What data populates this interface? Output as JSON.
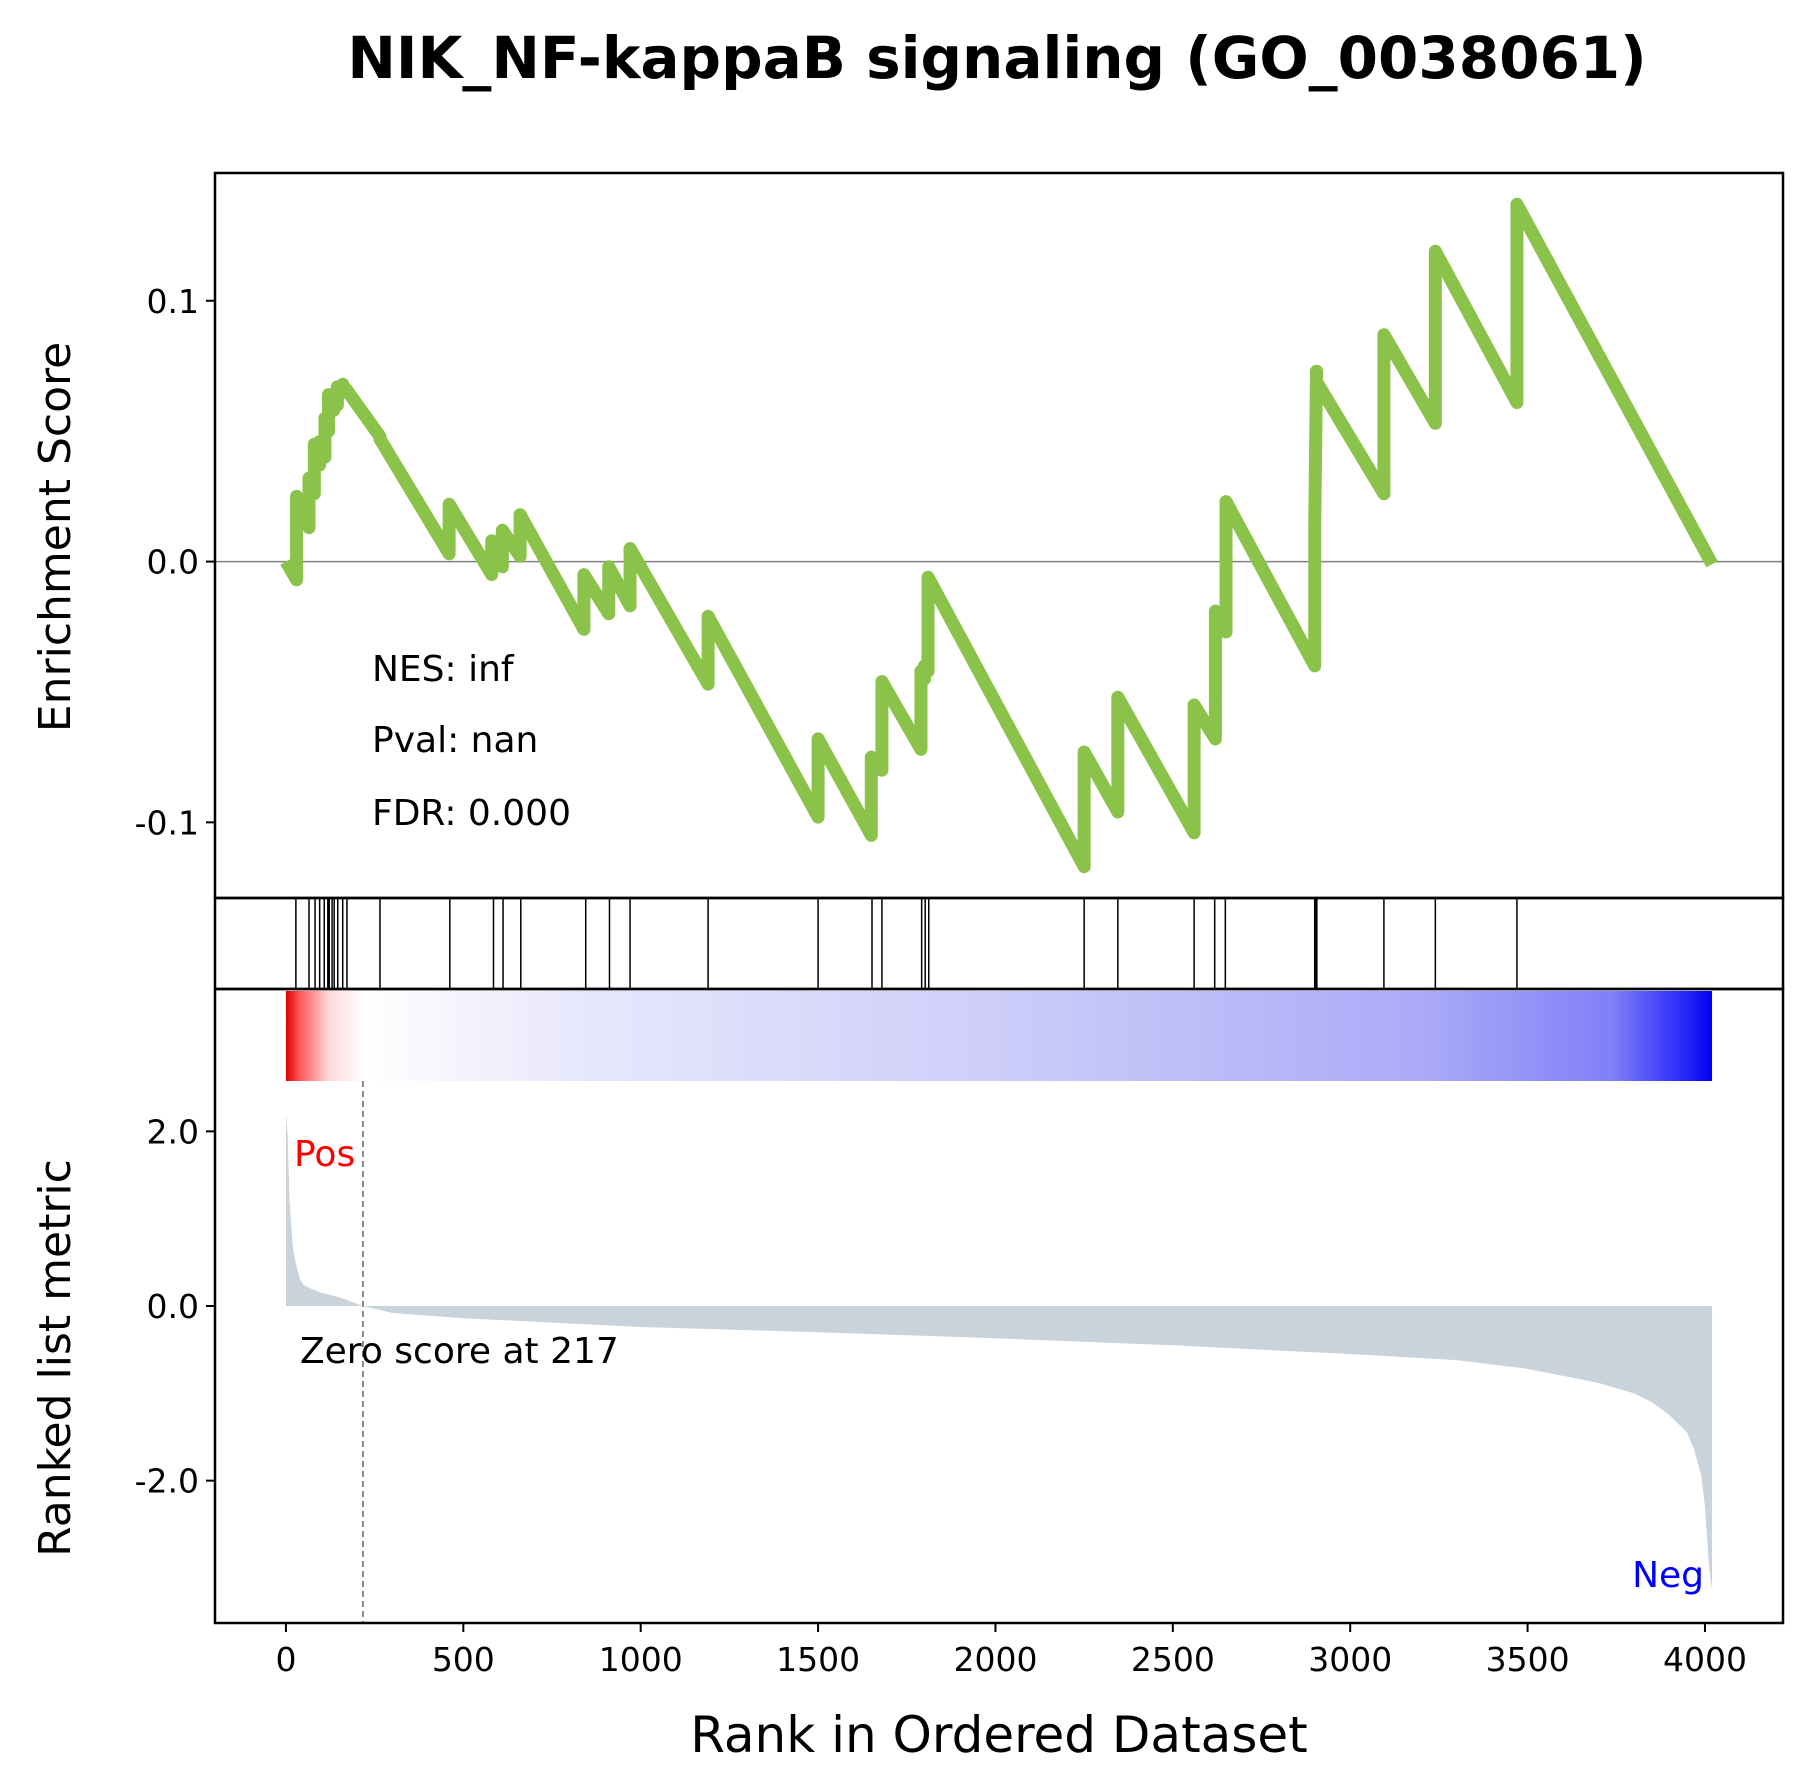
{
  "chart_data": {
    "type": "line",
    "title": "NIK_NF-kappaB signaling (GO_0038061)",
    "colors": {
      "es_line": "#8bc34a",
      "ranked_fill": "#c8d3dc",
      "pos_label": "#ff0000",
      "neg_label": "#0000ff",
      "hits": "#000000"
    },
    "xlabel": "Rank in Ordered Dataset",
    "xlim": [
      -200,
      4220
    ],
    "xticks": [
      0,
      500,
      1000,
      1500,
      2000,
      2500,
      3000,
      3500,
      4000
    ],
    "xtick_labels": [
      "0",
      "500",
      "1000",
      "1500",
      "2000",
      "2500",
      "3000",
      "3500",
      "4000"
    ],
    "es_panel": {
      "ylabel": "Enrichment Score",
      "ylim": [
        -0.129,
        0.149
      ],
      "yticks": [
        -0.1,
        0.0,
        0.1
      ],
      "ytick_labels": [
        "-0.1",
        "0.0",
        "0.1"
      ],
      "zero_line": true,
      "annotations": [
        "NES: inf",
        "Pval: nan",
        "FDR: 0.000"
      ],
      "series": [
        {
          "x": [
            0,
            30,
            30,
            65,
            65,
            80,
            80,
            95,
            95,
            110,
            110,
            120,
            120,
            135,
            135,
            145,
            145,
            160,
            160,
            170,
            170,
            265,
            265,
            460,
            460,
            580,
            580,
            610,
            610,
            660,
            660,
            840,
            840,
            910,
            910,
            970,
            970,
            1190,
            1190,
            1500,
            1500,
            1650,
            1650,
            1680,
            1680,
            1790,
            1790,
            1800,
            1800,
            1810,
            1810,
            2250,
            2250,
            2345,
            2345,
            2560,
            2560,
            2620,
            2620,
            2650,
            2650,
            2900,
            2900,
            2905,
            2905,
            3095,
            3095,
            3240,
            3240,
            3470,
            3470,
            4020
          ],
          "y": [
            0,
            -0.007,
            0.025,
            0.013,
            0.032,
            0.026,
            0.045,
            0.037,
            0.046,
            0.04,
            0.055,
            0.05,
            0.064,
            0.058,
            0.063,
            0.06,
            0.067,
            0.065,
            0.068,
            0.065,
            0.066,
            0.048,
            0.047,
            0.003,
            0.022,
            -0.005,
            0.008,
            -0.002,
            0.012,
            0.002,
            0.018,
            -0.026,
            -0.005,
            -0.02,
            -0.002,
            -0.017,
            0.005,
            -0.047,
            -0.021,
            -0.098,
            -0.068,
            -0.105,
            -0.075,
            -0.08,
            -0.046,
            -0.072,
            -0.042,
            -0.045,
            -0.04,
            -0.042,
            -0.006,
            -0.117,
            -0.073,
            -0.096,
            -0.052,
            -0.104,
            -0.055,
            -0.068,
            -0.019,
            -0.027,
            0.023,
            -0.04,
            0.014,
            0.073,
            0.069,
            0.026,
            0.087,
            0.053,
            0.119,
            0.061,
            0.137,
            -0.001
          ]
        }
      ]
    },
    "hits_panel": {
      "positions": [
        28,
        65,
        82,
        95,
        108,
        118,
        122,
        130,
        136,
        146,
        160,
        172,
        265,
        462,
        585,
        612,
        662,
        845,
        912,
        970,
        1190,
        1500,
        1652,
        1680,
        1792,
        1802,
        1812,
        2250,
        2345,
        2560,
        2618,
        2648,
        2900,
        2903,
        2906,
        3095,
        3240,
        3470
      ]
    },
    "ranked_panel": {
      "ylabel": "Ranked list metric",
      "ylim": [
        -3.63,
        3.63
      ],
      "yticks": [
        -2.0,
        0.0,
        2.0
      ],
      "ytick_labels": [
        "-2.0",
        "0.0",
        "2.0"
      ],
      "zero_score_rank": 217,
      "zero_score_label": "Zero score at 217",
      "pos_label": "Pos",
      "neg_label": "Neg",
      "n_genes": 4020,
      "ranked_metric": {
        "x": [
          0,
          5,
          10,
          20,
          30,
          40,
          50,
          70,
          100,
          150,
          217,
          300,
          500,
          800,
          1000,
          1500,
          2000,
          2500,
          3000,
          3300,
          3500,
          3700,
          3800,
          3850,
          3900,
          3950,
          3970,
          3990,
          4000,
          4005,
          4010,
          4015,
          4020
        ],
        "y": [
          2.2,
          1.95,
          1.2,
          0.65,
          0.45,
          0.3,
          0.24,
          0.2,
          0.15,
          0.1,
          0.0,
          -0.08,
          -0.14,
          -0.2,
          -0.24,
          -0.3,
          -0.37,
          -0.45,
          -0.55,
          -0.62,
          -0.72,
          -0.88,
          -1.0,
          -1.1,
          -1.25,
          -1.45,
          -1.65,
          -1.95,
          -2.3,
          -2.6,
          -2.9,
          -3.1,
          -3.25
        ]
      }
    }
  }
}
